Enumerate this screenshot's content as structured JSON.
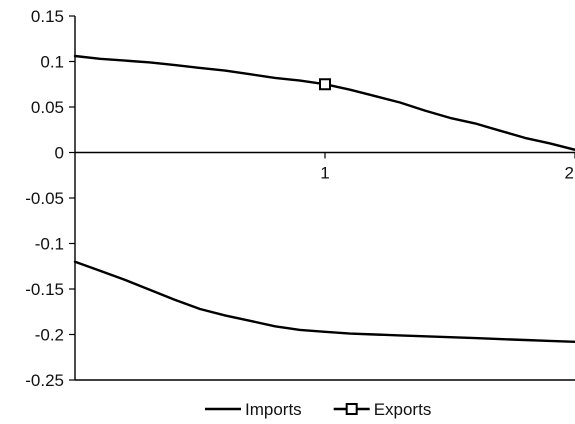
{
  "chart_data": {
    "type": "line",
    "title": "",
    "xlabel": "",
    "ylabel": "",
    "xlim": [
      0,
      2
    ],
    "ylim": [
      -0.25,
      0.15
    ],
    "x_ticks": [
      {
        "value": 1,
        "label": "1"
      },
      {
        "value": 2,
        "label": "2"
      }
    ],
    "y_ticks": [
      {
        "value": 0.15,
        "label": "0.15"
      },
      {
        "value": 0.1,
        "label": "0.1"
      },
      {
        "value": 0.05,
        "label": "0.05"
      },
      {
        "value": 0,
        "label": "0"
      },
      {
        "value": -0.05,
        "label": "-0.05"
      },
      {
        "value": -0.1,
        "label": "-0.1"
      },
      {
        "value": -0.15,
        "label": "-0.15"
      },
      {
        "value": -0.2,
        "label": "-0.2"
      },
      {
        "value": -0.25,
        "label": "-0.25"
      }
    ],
    "grid": false,
    "legend_position": "bottom",
    "series": [
      {
        "name": "Imports",
        "marker": "none",
        "points": [
          [
            0,
            -0.12
          ],
          [
            0.1,
            -0.13
          ],
          [
            0.2,
            -0.14
          ],
          [
            0.3,
            -0.151
          ],
          [
            0.4,
            -0.162
          ],
          [
            0.5,
            -0.172
          ],
          [
            0.6,
            -0.179
          ],
          [
            0.7,
            -0.185
          ],
          [
            0.8,
            -0.191
          ],
          [
            0.9,
            -0.195
          ],
          [
            1.0,
            -0.197
          ],
          [
            1.1,
            -0.199
          ],
          [
            1.2,
            -0.2
          ],
          [
            1.3,
            -0.201
          ],
          [
            1.4,
            -0.202
          ],
          [
            1.5,
            -0.203
          ],
          [
            1.6,
            -0.204
          ],
          [
            1.7,
            -0.205
          ],
          [
            1.8,
            -0.206
          ],
          [
            1.9,
            -0.207
          ],
          [
            2.0,
            -0.208
          ]
        ]
      },
      {
        "name": "Exports",
        "marker": "square",
        "marker_points": [
          [
            1,
            0.075
          ]
        ],
        "points": [
          [
            0,
            0.106
          ],
          [
            0.1,
            0.103
          ],
          [
            0.2,
            0.101
          ],
          [
            0.3,
            0.099
          ],
          [
            0.4,
            0.096
          ],
          [
            0.5,
            0.093
          ],
          [
            0.6,
            0.09
          ],
          [
            0.7,
            0.086
          ],
          [
            0.8,
            0.082
          ],
          [
            0.9,
            0.079
          ],
          [
            1.0,
            0.075
          ],
          [
            1.1,
            0.069
          ],
          [
            1.2,
            0.062
          ],
          [
            1.3,
            0.055
          ],
          [
            1.4,
            0.046
          ],
          [
            1.5,
            0.038
          ],
          [
            1.6,
            0.032
          ],
          [
            1.7,
            0.024
          ],
          [
            1.8,
            0.016
          ],
          [
            1.9,
            0.01
          ],
          [
            2.0,
            0.003
          ]
        ]
      }
    ]
  }
}
